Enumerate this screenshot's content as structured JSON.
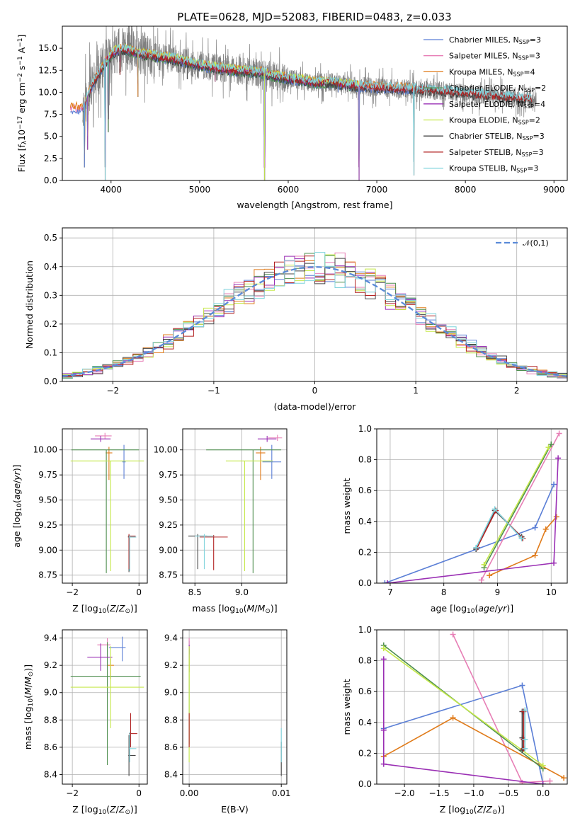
{
  "title": "PLATE=0628, MJD=52083, FIBERID=0483, z=0.033",
  "colors": {
    "Chabrier MILES": "#5b7fd6",
    "Salpeter MILES": "#e77fb6",
    "Kroupa MILES": "#e07b1a",
    "Chabrier ELODIE": "#4f8f4f",
    "Salpeter ELODIE": "#9a2fb4",
    "Kroupa ELODIE": "#c5e84a",
    "Chabrier STELIB": "#444444",
    "Salpeter STELIB": "#b22222",
    "Kroupa STELIB": "#7fd3dc",
    "data": "#808080",
    "normal": "#5a8ad8"
  },
  "chart_data": [
    {
      "id": "spectrum",
      "type": "line",
      "title": "PLATE=0628, MJD=52083, FIBERID=0483, z=0.033",
      "xlabel": "wavelength [Angstrom, rest frame]",
      "ylabel": "Flux [f_λ10^-17 erg cm^-2 s^-1 A^-1]",
      "xlim": [
        3450,
        9150
      ],
      "ylim": [
        0,
        17.5
      ],
      "xticks": [
        4000,
        5000,
        6000,
        7000,
        8000,
        9000
      ],
      "yticks": [
        0.0,
        2.5,
        5.0,
        7.5,
        10.0,
        12.5,
        15.0
      ],
      "grid": false,
      "legend_position": "top-right",
      "legend": [
        "Chabrier MILES, N_SSP=3",
        "Salpeter MILES, N_SSP=3",
        "Kroupa MILES, N_SSP=4",
        "Chabrier ELODIE, N_SSP=2",
        "Salpeter ELODIE, N_SSP=4",
        "Kroupa ELODIE, N_SSP=2",
        "Chabrier STELIB, N_SSP=3",
        "Salpeter STELIB, N_SSP=3",
        "Kroupa STELIB, N_SSP=3"
      ],
      "continuum": {
        "x": [
          3680,
          3750,
          3850,
          3950,
          4050,
          4150,
          4300,
          4500,
          4700,
          4900,
          5100,
          5300,
          5500,
          5700,
          5900,
          6100,
          6300,
          6500,
          6700,
          6900,
          7100,
          7300,
          7500,
          7700,
          8000,
          8300,
          8600,
          8800
        ],
        "y": [
          8.2,
          10.0,
          12.0,
          13.6,
          14.7,
          14.9,
          14.4,
          14.1,
          13.8,
          13.3,
          12.9,
          12.6,
          12.4,
          12.2,
          11.7,
          11.4,
          11.1,
          11.1,
          10.8,
          10.6,
          10.5,
          10.4,
          10.3,
          10.2,
          9.9,
          9.6,
          9.4,
          9.2
        ]
      },
      "series_extent": [
        {
          "name": "Chabrier MILES",
          "x_start": 3540,
          "x_end": 7420
        },
        {
          "name": "Salpeter MILES",
          "x_start": 3540,
          "x_end": 7420
        },
        {
          "name": "Kroupa MILES",
          "x_start": 3540,
          "x_end": 7420
        },
        {
          "name": "Chabrier ELODIE",
          "x_start": 3900,
          "x_end": 6800
        },
        {
          "name": "Salpeter ELODIE",
          "x_start": 3900,
          "x_end": 6800
        },
        {
          "name": "Kroupa ELODIE",
          "x_start": 3900,
          "x_end": 6800
        },
        {
          "name": "Chabrier STELIB",
          "x_start": 3680,
          "x_end": 8750
        },
        {
          "name": "Salpeter STELIB",
          "x_start": 3680,
          "x_end": 8750
        },
        {
          "name": "Kroupa STELIB",
          "x_start": 3680,
          "x_end": 8750
        }
      ],
      "absorption_features": [
        {
          "x": 3700,
          "y": 1.5
        },
        {
          "x": 3736,
          "y": 3.5
        },
        {
          "x": 3934,
          "y": 0.0
        },
        {
          "x": 3969,
          "y": 5.5
        },
        {
          "x": 4101,
          "y": 12.0
        },
        {
          "x": 4304,
          "y": 9.5
        },
        {
          "x": 4861,
          "y": 11.5
        },
        {
          "x": 5176,
          "y": 11.2
        },
        {
          "x": 5733,
          "y": 0.0
        },
        {
          "x": 6563,
          "y": 10.0
        },
        {
          "x": 6800,
          "y": 0.0
        },
        {
          "x": 7420,
          "y": 0.6
        }
      ]
    },
    {
      "id": "residuals",
      "type": "line",
      "xlabel": "(data-model)/error",
      "ylabel": "Normed distribution",
      "xlim": [
        -2.5,
        2.5
      ],
      "ylim": [
        0,
        0.535
      ],
      "xticks": [
        -2,
        -1,
        0,
        1,
        2
      ],
      "yticks": [
        0.0,
        0.1,
        0.2,
        0.3,
        0.4,
        0.5
      ],
      "grid": true,
      "legend_position": "top-right",
      "legend": [
        "𝒩(0,1)"
      ],
      "series": [
        {
          "name": "𝒩(0,1)",
          "mean": 0,
          "sigma": 1
        }
      ],
      "histogram": {
        "bin_edges_start": -2.5,
        "bin_width": 0.1,
        "n_bins": 50,
        "models": 9
      }
    },
    {
      "id": "age_vs_Z",
      "type": "scatter",
      "xlabel": "Z [log10(Z/Z⊙)]",
      "ylabel": "age [log10(age/yr)]",
      "xlim": [
        -2.3,
        0.25
      ],
      "ylim": [
        8.67,
        10.21
      ],
      "xticks": [
        -2,
        0
      ],
      "yticks": [
        8.75,
        9.0,
        9.25,
        9.5,
        9.75,
        10.0
      ],
      "grid": true,
      "points": [
        {
          "model": "Chabrier MILES",
          "x": -0.45,
          "y": 9.88,
          "xerr": [
            0.05,
            0.05
          ],
          "yerr": [
            0.17,
            0.17
          ]
        },
        {
          "model": "Salpeter MILES",
          "x": -1.02,
          "y": 10.14,
          "xerr": [
            0.3,
            0.2
          ],
          "yerr": [
            0.03,
            0.03
          ]
        },
        {
          "model": "Kroupa MILES",
          "x": -0.9,
          "y": 9.97,
          "xerr": [
            0.1,
            0.1
          ],
          "yerr": [
            0.27,
            0.06
          ]
        },
        {
          "model": "Chabrier ELODIE",
          "x": -0.98,
          "y": 10.0,
          "xerr": [
            1.05,
            0.98
          ],
          "yerr": [
            1.23,
            0.0
          ]
        },
        {
          "model": "Salpeter ELODIE",
          "x": -1.15,
          "y": 10.11,
          "xerr": [
            0.3,
            0.3
          ],
          "yerr": [
            0.03,
            0.03
          ]
        },
        {
          "model": "Kroupa ELODIE",
          "x": -0.85,
          "y": 9.89,
          "xerr": [
            1.2,
            1.0
          ],
          "yerr": [
            1.1,
            0.0
          ]
        },
        {
          "model": "Chabrier STELIB",
          "x": -0.3,
          "y": 9.13,
          "xerr": [
            0.03,
            0.2
          ],
          "yerr": [
            0.35,
            0.02
          ]
        },
        {
          "model": "Salpeter STELIB",
          "x": -0.3,
          "y": 9.14,
          "xerr": [
            0.03,
            0.2
          ],
          "yerr": [
            0.33,
            0.02
          ]
        },
        {
          "model": "Kroupa STELIB",
          "x": -0.28,
          "y": 9.13,
          "xerr": [
            0.03,
            0.2
          ],
          "yerr": [
            0.34,
            0.02
          ]
        }
      ]
    },
    {
      "id": "age_vs_mass",
      "type": "scatter",
      "xlabel": "mass [log10(M/M⊙)]",
      "ylabel": "",
      "xlim": [
        8.37,
        9.48
      ],
      "ylim": [
        8.67,
        10.21
      ],
      "xticks": [
        8.5,
        9.0
      ],
      "yticks": [
        8.75,
        9.0,
        9.25,
        9.5,
        9.75,
        10.0
      ],
      "grid": true,
      "points": [
        {
          "model": "Chabrier MILES",
          "x": 9.32,
          "y": 9.88,
          "xerr": [
            0.1,
            0.1
          ],
          "yerr": [
            0.17,
            0.17
          ]
        },
        {
          "model": "Salpeter MILES",
          "x": 9.38,
          "y": 10.12,
          "xerr": [
            0.1,
            0.05
          ],
          "yerr": [
            0.03,
            0.03
          ]
        },
        {
          "model": "Kroupa MILES",
          "x": 9.2,
          "y": 9.97,
          "xerr": [
            0.05,
            0.05
          ],
          "yerr": [
            0.27,
            0.06
          ]
        },
        {
          "model": "Chabrier ELODIE",
          "x": 9.12,
          "y": 10.0,
          "xerr": [
            0.5,
            0.3
          ],
          "yerr": [
            1.23,
            0.0
          ]
        },
        {
          "model": "Salpeter ELODIE",
          "x": 9.27,
          "y": 10.11,
          "xerr": [
            0.1,
            0.1
          ],
          "yerr": [
            0.03,
            0.03
          ]
        },
        {
          "model": "Kroupa ELODIE",
          "x": 9.03,
          "y": 9.89,
          "xerr": [
            0.2,
            0.3
          ],
          "yerr": [
            1.1,
            0.0
          ]
        },
        {
          "model": "Chabrier STELIB",
          "x": 8.53,
          "y": 9.14,
          "xerr": [
            0.1,
            0.1
          ],
          "yerr": [
            0.33,
            0.02
          ]
        },
        {
          "model": "Salpeter STELIB",
          "x": 8.7,
          "y": 9.13,
          "xerr": [
            0.15,
            0.15
          ],
          "yerr": [
            0.33,
            0.02
          ]
        },
        {
          "model": "Kroupa STELIB",
          "x": 8.6,
          "y": 9.14,
          "xerr": [
            0.1,
            0.1
          ],
          "yerr": [
            0.33,
            0.02
          ]
        }
      ]
    },
    {
      "id": "weight_vs_age",
      "type": "line",
      "xlabel": "age [log10(age/yr)]",
      "ylabel": "mass weight",
      "xlim": [
        6.75,
        10.3
      ],
      "ylim": [
        0,
        1.0
      ],
      "xticks": [
        7,
        8,
        9,
        10
      ],
      "yticks": [
        0.0,
        0.2,
        0.4,
        0.6,
        0.8,
        1.0
      ],
      "grid": true,
      "series": [
        {
          "name": "Chabrier MILES",
          "x": [
            6.9,
            9.7,
            10.05
          ],
          "y": [
            0.0,
            0.36,
            0.64
          ]
        },
        {
          "name": "Salpeter MILES",
          "x": [
            8.7,
            10.15
          ],
          "y": [
            0.02,
            0.97
          ]
        },
        {
          "name": "Kroupa MILES",
          "x": [
            8.85,
            9.7,
            9.9,
            10.1
          ],
          "y": [
            0.05,
            0.18,
            0.35,
            0.43
          ]
        },
        {
          "name": "Chabrier ELODIE",
          "x": [
            8.75,
            10.0
          ],
          "y": [
            0.1,
            0.9
          ]
        },
        {
          "name": "Salpeter ELODIE",
          "x": [
            6.95,
            10.05,
            10.13
          ],
          "y": [
            0.0,
            0.13,
            0.81
          ]
        },
        {
          "name": "Kroupa ELODIE",
          "x": [
            8.75,
            9.95
          ],
          "y": [
            0.12,
            0.88
          ]
        },
        {
          "name": "Chabrier STELIB",
          "x": [
            8.6,
            8.95,
            9.45
          ],
          "y": [
            0.22,
            0.47,
            0.3
          ]
        },
        {
          "name": "Salpeter STELIB",
          "x": [
            8.62,
            8.97,
            9.47
          ],
          "y": [
            0.23,
            0.47,
            0.29
          ]
        },
        {
          "name": "Kroupa STELIB",
          "x": [
            8.6,
            8.95,
            9.45
          ],
          "y": [
            0.23,
            0.48,
            0.29
          ]
        }
      ]
    },
    {
      "id": "mass_vs_Z",
      "type": "scatter",
      "xlabel": "Z [log10(Z/Z⊙)]",
      "ylabel": "mass [log10(M/M⊙)]",
      "xlim": [
        -2.3,
        0.25
      ],
      "ylim": [
        8.33,
        9.46
      ],
      "xticks": [
        -2,
        0
      ],
      "yticks": [
        8.4,
        8.6,
        8.8,
        9.0,
        9.2,
        9.4
      ],
      "grid": true,
      "points": [
        {
          "model": "Chabrier MILES",
          "x": -0.5,
          "y": 9.33,
          "xerr": [
            0.4,
            0.1
          ],
          "yerr": [
            0.1,
            0.08
          ]
        },
        {
          "model": "Salpeter MILES",
          "x": -0.95,
          "y": 9.35,
          "xerr": [
            0.3,
            0.1
          ],
          "yerr": [
            0.05,
            0.05
          ]
        },
        {
          "model": "Kroupa MILES",
          "x": -0.85,
          "y": 9.2,
          "xerr": [
            0.1,
            0.1
          ],
          "yerr": [
            0.1,
            0.05
          ]
        },
        {
          "model": "Chabrier ELODIE",
          "x": -0.95,
          "y": 9.12,
          "xerr": [
            1.1,
            1.0
          ],
          "yerr": [
            0.65,
            0.25
          ]
        },
        {
          "model": "Salpeter ELODIE",
          "x": -1.15,
          "y": 9.26,
          "xerr": [
            0.4,
            0.35
          ],
          "yerr": [
            0.1,
            0.1
          ]
        },
        {
          "model": "Kroupa ELODIE",
          "x": -0.85,
          "y": 9.04,
          "xerr": [
            1.2,
            1.0
          ],
          "yerr": [
            0.3,
            0.3
          ]
        },
        {
          "model": "Chabrier STELIB",
          "x": -0.3,
          "y": 8.54,
          "xerr": [
            0.02,
            0.2
          ],
          "yerr": [
            0.15,
            0.15
          ]
        },
        {
          "model": "Salpeter STELIB",
          "x": -0.25,
          "y": 8.7,
          "xerr": [
            0.05,
            0.2
          ],
          "yerr": [
            0.1,
            0.15
          ]
        },
        {
          "model": "Kroupa STELIB",
          "x": -0.28,
          "y": 8.59,
          "xerr": [
            0.02,
            0.2
          ],
          "yerr": [
            0.1,
            0.12
          ]
        }
      ]
    },
    {
      "id": "mass_vs_EBV",
      "type": "scatter",
      "xlabel": "E(B-V)",
      "ylabel": "",
      "xlim": [
        -0.0007,
        0.0106
      ],
      "ylim": [
        8.33,
        9.46
      ],
      "xticks": [
        0.0,
        0.01
      ],
      "yticks": [
        8.4,
        8.6,
        8.8,
        9.0,
        9.2,
        9.4
      ],
      "grid": true,
      "points": [
        {
          "model": "Chabrier MILES",
          "x": 0.0,
          "y": 9.33,
          "yerr": [
            0.05,
            0.05
          ]
        },
        {
          "model": "Salpeter MILES",
          "x": 0.0,
          "y": 9.35,
          "yerr": [
            0.05,
            0.05
          ]
        },
        {
          "model": "Kroupa MILES",
          "x": 0.0,
          "y": 9.2,
          "yerr": [
            0.05,
            0.05
          ]
        },
        {
          "model": "Chabrier ELODIE",
          "x": 0.0,
          "y": 9.12,
          "yerr": [
            0.5,
            0.2
          ]
        },
        {
          "model": "Salpeter ELODIE",
          "x": 0.0,
          "y": 9.3,
          "yerr": [
            0.05,
            0.05
          ]
        },
        {
          "model": "Kroupa ELODIE",
          "x": 0.0,
          "y": 9.04,
          "yerr": [
            0.55,
            0.3
          ]
        },
        {
          "model": "Chabrier STELIB",
          "x": 0.01,
          "y": 8.54,
          "yerr": [
            0.15,
            0.1
          ]
        },
        {
          "model": "Salpeter STELIB",
          "x": 0.0,
          "y": 8.7,
          "yerr": [
            0.1,
            0.15
          ]
        },
        {
          "model": "Kroupa STELIB",
          "x": 0.01,
          "y": 8.59,
          "yerr": [
            0.1,
            0.15
          ]
        }
      ]
    },
    {
      "id": "weight_vs_Z",
      "type": "line",
      "xlabel": "Z [log10(Z/Z⊙)]",
      "ylabel": "mass weight",
      "xlim": [
        -2.4,
        0.35
      ],
      "ylim": [
        0,
        1.0
      ],
      "xticks": [
        -2.0,
        -1.5,
        -1.0,
        -0.5,
        0.0
      ],
      "yticks": [
        0.0,
        0.2,
        0.4,
        0.6,
        0.8,
        1.0
      ],
      "grid": true,
      "series": [
        {
          "name": "Chabrier MILES",
          "x": [
            -2.3,
            -0.3,
            0.0
          ],
          "y": [
            0.36,
            0.64,
            0.0
          ]
        },
        {
          "name": "Salpeter MILES",
          "x": [
            -1.3,
            -0.3,
            0.1
          ],
          "y": [
            0.97,
            0.01,
            0.02
          ]
        },
        {
          "name": "Kroupa MILES",
          "x": [
            -2.3,
            -1.3,
            0.3
          ],
          "y": [
            0.18,
            0.43,
            0.04
          ]
        },
        {
          "name": "Chabrier ELODIE",
          "x": [
            -2.3,
            0.0
          ],
          "y": [
            0.9,
            0.1
          ]
        },
        {
          "name": "Salpeter ELODIE",
          "x": [
            -2.3,
            -2.3,
            -2.3,
            0.0
          ],
          "y": [
            0.81,
            0.35,
            0.13,
            0.0
          ]
        },
        {
          "name": "Kroupa ELODIE",
          "x": [
            -2.3,
            0.0
          ],
          "y": [
            0.88,
            0.12
          ]
        },
        {
          "name": "Chabrier STELIB",
          "x": [
            -0.3,
            -0.3,
            -0.3
          ],
          "y": [
            0.47,
            0.3,
            0.22
          ]
        },
        {
          "name": "Salpeter STELIB",
          "x": [
            -0.28,
            -0.28,
            -0.28
          ],
          "y": [
            0.47,
            0.29,
            0.23
          ]
        },
        {
          "name": "Kroupa STELIB",
          "x": [
            -0.26,
            -0.26,
            -0.26
          ],
          "y": [
            0.48,
            0.29,
            0.23
          ]
        }
      ]
    }
  ]
}
